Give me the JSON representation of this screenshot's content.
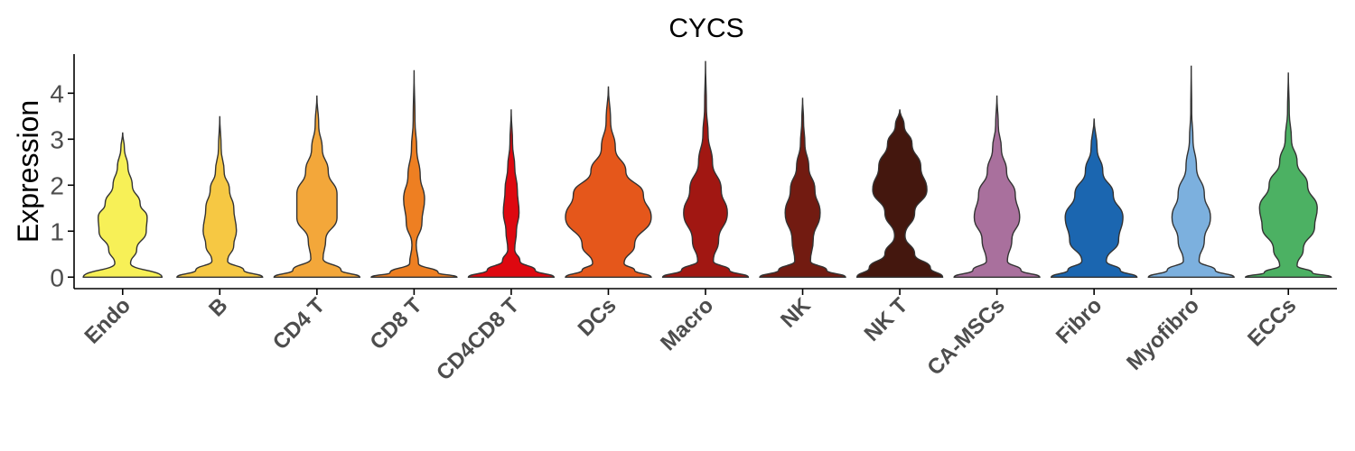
{
  "chart_data": {
    "type": "violin",
    "title": "CYCS",
    "xlabel": "",
    "ylabel": "Expression",
    "ylim": [
      -0.25,
      4.85
    ],
    "yticks": [
      0,
      1,
      2,
      3,
      4
    ],
    "grid": false,
    "legend": "none",
    "categories": [
      "Endo",
      "B",
      "CD4 T",
      "CD8 T",
      "CD4CD8 T",
      "DCs",
      "Macro",
      "NK",
      "NK T",
      "CA-MSCs",
      "Fibro",
      "Myofibro",
      "ECCs"
    ],
    "colors": [
      "#F7F057",
      "#F6C843",
      "#F3A73A",
      "#EE7F22",
      "#DE0810",
      "#E5571B",
      "#A11712",
      "#721B11",
      "#44170E",
      "#A9709D",
      "#1B66B0",
      "#7CB0DE",
      "#4CB163"
    ],
    "violins": [
      {
        "name": "Endo",
        "max": 3.15,
        "profile": [
          [
            0,
            0.9
          ],
          [
            0.3,
            0.18
          ],
          [
            0.6,
            0.32
          ],
          [
            1.0,
            0.54
          ],
          [
            1.3,
            0.56
          ],
          [
            1.6,
            0.4
          ],
          [
            2.0,
            0.22
          ],
          [
            2.4,
            0.12
          ],
          [
            2.8,
            0.04
          ],
          [
            3.15,
            0
          ]
        ]
      },
      {
        "name": "B",
        "max": 3.5,
        "profile": [
          [
            0,
            0.98
          ],
          [
            0.15,
            0.55
          ],
          [
            0.35,
            0.18
          ],
          [
            0.7,
            0.32
          ],
          [
            1.0,
            0.38
          ],
          [
            1.5,
            0.32
          ],
          [
            1.9,
            0.22
          ],
          [
            2.3,
            0.1
          ],
          [
            2.8,
            0.03
          ],
          [
            3.5,
            0
          ]
        ]
      },
      {
        "name": "CD4 T",
        "max": 3.95,
        "profile": [
          [
            0,
            0.98
          ],
          [
            0.15,
            0.55
          ],
          [
            0.4,
            0.14
          ],
          [
            0.8,
            0.2
          ],
          [
            1.3,
            0.46
          ],
          [
            1.8,
            0.46
          ],
          [
            2.3,
            0.26
          ],
          [
            2.8,
            0.12
          ],
          [
            3.3,
            0.04
          ],
          [
            3.95,
            0
          ]
        ]
      },
      {
        "name": "CD8 T",
        "max": 4.5,
        "profile": [
          [
            0,
            0.98
          ],
          [
            0.1,
            0.55
          ],
          [
            0.3,
            0.1
          ],
          [
            0.7,
            0.05
          ],
          [
            1.2,
            0.18
          ],
          [
            1.7,
            0.24
          ],
          [
            2.2,
            0.14
          ],
          [
            2.8,
            0.06
          ],
          [
            3.4,
            0.02
          ],
          [
            4.5,
            0
          ]
        ]
      },
      {
        "name": "CD4CD8 T",
        "max": 3.65,
        "profile": [
          [
            0,
            0.98
          ],
          [
            0.15,
            0.55
          ],
          [
            0.35,
            0.2
          ],
          [
            0.6,
            0.08
          ],
          [
            1.0,
            0.12
          ],
          [
            1.4,
            0.18
          ],
          [
            1.9,
            0.14
          ],
          [
            2.4,
            0.08
          ],
          [
            2.9,
            0.03
          ],
          [
            3.65,
            0
          ]
        ]
      },
      {
        "name": "DCs",
        "max": 4.15,
        "profile": [
          [
            0,
            0.98
          ],
          [
            0.15,
            0.6
          ],
          [
            0.3,
            0.36
          ],
          [
            0.7,
            0.6
          ],
          [
            1.3,
            0.98
          ],
          [
            1.8,
            0.8
          ],
          [
            2.3,
            0.4
          ],
          [
            2.8,
            0.16
          ],
          [
            3.4,
            0.05
          ],
          [
            4.15,
            0
          ]
        ]
      },
      {
        "name": "Macro",
        "max": 4.7,
        "profile": [
          [
            0,
            0.98
          ],
          [
            0.15,
            0.55
          ],
          [
            0.35,
            0.18
          ],
          [
            0.8,
            0.3
          ],
          [
            1.4,
            0.5
          ],
          [
            1.9,
            0.36
          ],
          [
            2.5,
            0.16
          ],
          [
            3.1,
            0.06
          ],
          [
            3.7,
            0.02
          ],
          [
            4.7,
            0
          ]
        ]
      },
      {
        "name": "NK",
        "max": 3.9,
        "profile": [
          [
            0,
            0.98
          ],
          [
            0.15,
            0.55
          ],
          [
            0.35,
            0.18
          ],
          [
            0.8,
            0.24
          ],
          [
            1.4,
            0.4
          ],
          [
            1.9,
            0.28
          ],
          [
            2.4,
            0.14
          ],
          [
            2.9,
            0.05
          ],
          [
            3.4,
            0.02
          ],
          [
            3.9,
            0
          ]
        ]
      },
      {
        "name": "NK T",
        "max": 3.65,
        "profile": [
          [
            0,
            0.98
          ],
          [
            0.2,
            0.7
          ],
          [
            0.5,
            0.34
          ],
          [
            0.9,
            0.12
          ],
          [
            1.4,
            0.34
          ],
          [
            1.9,
            0.62
          ],
          [
            2.4,
            0.48
          ],
          [
            2.9,
            0.28
          ],
          [
            3.3,
            0.1
          ],
          [
            3.65,
            0
          ]
        ]
      },
      {
        "name": "CA-MSCs",
        "max": 3.95,
        "profile": [
          [
            0,
            0.98
          ],
          [
            0.15,
            0.55
          ],
          [
            0.35,
            0.24
          ],
          [
            0.8,
            0.34
          ],
          [
            1.3,
            0.52
          ],
          [
            1.8,
            0.42
          ],
          [
            2.3,
            0.22
          ],
          [
            2.8,
            0.1
          ],
          [
            3.3,
            0.03
          ],
          [
            3.95,
            0
          ]
        ]
      },
      {
        "name": "Fibro",
        "max": 3.45,
        "profile": [
          [
            0,
            0.98
          ],
          [
            0.15,
            0.6
          ],
          [
            0.35,
            0.28
          ],
          [
            0.8,
            0.56
          ],
          [
            1.3,
            0.66
          ],
          [
            1.8,
            0.44
          ],
          [
            2.3,
            0.2
          ],
          [
            2.8,
            0.07
          ],
          [
            3.45,
            0
          ]
        ]
      },
      {
        "name": "Myofibro",
        "max": 4.6,
        "profile": [
          [
            0,
            0.98
          ],
          [
            0.15,
            0.55
          ],
          [
            0.35,
            0.18
          ],
          [
            0.8,
            0.3
          ],
          [
            1.3,
            0.44
          ],
          [
            1.8,
            0.3
          ],
          [
            2.4,
            0.12
          ],
          [
            3.0,
            0.04
          ],
          [
            3.6,
            0.01
          ],
          [
            4.6,
            0
          ]
        ]
      },
      {
        "name": "ECCs",
        "max": 4.45,
        "profile": [
          [
            0,
            0.98
          ],
          [
            0.1,
            0.55
          ],
          [
            0.25,
            0.2
          ],
          [
            0.6,
            0.34
          ],
          [
            1.1,
            0.6
          ],
          [
            1.5,
            0.66
          ],
          [
            2.0,
            0.44
          ],
          [
            2.5,
            0.2
          ],
          [
            3.0,
            0.07
          ],
          [
            3.6,
            0.02
          ],
          [
            4.45,
            0
          ]
        ]
      }
    ]
  }
}
